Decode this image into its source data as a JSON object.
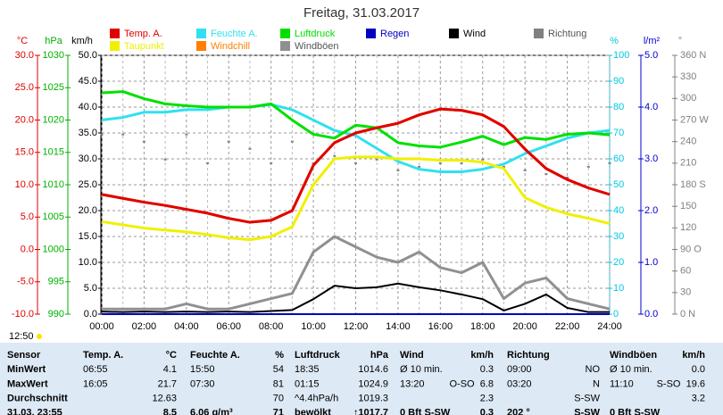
{
  "chart_data": {
    "type": "line",
    "title": "Freitag, 31.03.2017",
    "x": [
      0,
      1,
      2,
      3,
      4,
      5,
      6,
      7,
      8,
      9,
      10,
      11,
      12,
      13,
      14,
      15,
      16,
      17,
      18,
      19,
      20,
      21,
      22,
      23,
      24
    ],
    "xlim": [
      0,
      24
    ],
    "xticks": [
      {
        "value": 0,
        "label": "00:00"
      },
      {
        "value": 2,
        "label": "02:00"
      },
      {
        "value": 4,
        "label": "04:00"
      },
      {
        "value": 6,
        "label": "06:00"
      },
      {
        "value": 8,
        "label": "08:00"
      },
      {
        "value": 10,
        "label": "10:00"
      },
      {
        "value": 12,
        "label": "12:00"
      },
      {
        "value": 14,
        "label": "14:00"
      },
      {
        "value": 16,
        "label": "16:00"
      },
      {
        "value": 18,
        "label": "18:00"
      },
      {
        "value": 20,
        "label": "20:00"
      },
      {
        "value": 22,
        "label": "22:00"
      },
      {
        "value": 24,
        "label": "24:00"
      }
    ],
    "xminor": [
      1,
      3,
      5,
      7,
      9,
      11,
      13,
      15,
      17,
      19,
      21,
      23
    ],
    "grid": true,
    "y_axes": [
      {
        "label": "°C",
        "color": "#e00000",
        "lim": [
          -10,
          30
        ],
        "ticks": [
          {
            "value": 30,
            "label": "30.0"
          },
          {
            "value": 25,
            "label": "25.0"
          },
          {
            "value": 20,
            "label": "20.0"
          },
          {
            "value": 15,
            "label": "15.0"
          },
          {
            "value": 10,
            "label": "10.0"
          },
          {
            "value": 5,
            "label": "5.0"
          },
          {
            "value": 0,
            "label": "0.0"
          },
          {
            "value": -5,
            "label": "-5.0"
          },
          {
            "value": -10,
            "label": "-10.0"
          }
        ]
      },
      {
        "label": "hPa",
        "color": "#00b000",
        "lim": [
          990,
          1030
        ],
        "ticks": [
          1030,
          1025,
          1020,
          1015,
          1010,
          1005,
          1000,
          995,
          990
        ]
      },
      {
        "label": "km/h",
        "color": "#000000",
        "lim": [
          0,
          50
        ],
        "ticks": [
          {
            "value": 50,
            "label": "50.0"
          },
          {
            "value": 45,
            "label": "45.0"
          },
          {
            "value": 40,
            "label": "40.0"
          },
          {
            "value": 35,
            "label": "35.0"
          },
          {
            "value": 30,
            "label": "30.0"
          },
          {
            "value": 25,
            "label": "25.0"
          },
          {
            "value": 20,
            "label": "20.0"
          },
          {
            "value": 15,
            "label": "15.0"
          },
          {
            "value": 10,
            "label": "10.0"
          },
          {
            "value": 5,
            "label": "5.0"
          },
          {
            "value": 0,
            "label": "0.0"
          }
        ]
      },
      {
        "label": "%",
        "color": "#00c8e0",
        "lim": [
          0,
          100
        ],
        "ticks": [
          100,
          90,
          80,
          70,
          60,
          50,
          40,
          30,
          20,
          10,
          0
        ]
      },
      {
        "label": "l/m²",
        "color": "#0000d0",
        "lim": [
          0,
          5
        ],
        "ticks": [
          {
            "value": 5,
            "label": "5.0"
          },
          {
            "value": 4,
            "label": "4.0"
          },
          {
            "value": 3,
            "label": "3.0"
          },
          {
            "value": 2,
            "label": "2.0"
          },
          {
            "value": 1,
            "label": "1.0"
          },
          {
            "value": 0,
            "label": "0.0"
          }
        ]
      },
      {
        "label": "°",
        "color": "#808080",
        "lim": [
          0,
          360
        ],
        "ticks": [
          {
            "value": 360,
            "label": "360 N"
          },
          330,
          300,
          {
            "value": 270,
            "label": "270 W"
          },
          240,
          210,
          {
            "value": 180,
            "label": "180 S"
          },
          150,
          120,
          {
            "value": 90,
            "label": "90 O"
          },
          60,
          30,
          {
            "value": 0,
            "label": "0 N"
          }
        ]
      }
    ],
    "series": [
      {
        "name": "Temp. A.",
        "color": "#e00000",
        "axis": "°C",
        "values": [
          8.5,
          7.9,
          7.3,
          6.8,
          6.2,
          5.6,
          4.8,
          4.2,
          4.5,
          6.0,
          13.0,
          16.5,
          18.0,
          18.8,
          19.5,
          20.8,
          21.7,
          21.5,
          20.8,
          19.0,
          15.5,
          12.5,
          10.8,
          9.5,
          8.5
        ]
      },
      {
        "name": "Feuchte A.",
        "color": "#30e0f0",
        "axis": "%",
        "values": [
          75,
          76,
          78,
          78,
          79,
          79,
          80,
          80,
          81,
          79,
          75,
          71,
          69,
          64,
          59,
          56,
          55,
          55,
          56,
          58,
          62,
          65,
          68,
          70,
          71
        ]
      },
      {
        "name": "Luftdruck",
        "color": "#00e000",
        "axis": "hPa",
        "values": [
          1024.2,
          1024.4,
          1023.3,
          1022.5,
          1022.2,
          1022.0,
          1022.0,
          1022.0,
          1022.5,
          1020.0,
          1017.8,
          1017.2,
          1019.2,
          1018.8,
          1016.5,
          1016.0,
          1015.8,
          1016.6,
          1017.5,
          1016.2,
          1017.3,
          1017.0,
          1017.8,
          1018.0,
          1017.7
        ]
      },
      {
        "name": "Regen",
        "color": "#0000c0",
        "axis": "l/m²",
        "values": [
          0,
          0,
          0,
          0,
          0,
          0,
          0,
          0,
          0,
          0,
          0,
          0,
          0,
          0,
          0,
          0,
          0,
          0,
          0,
          0,
          0,
          0,
          0,
          0,
          0
        ]
      },
      {
        "name": "Wind",
        "color": "#000000",
        "axis": "km/h",
        "values": [
          0.5,
          0.4,
          0.5,
          0.4,
          0.5,
          0.4,
          0.5,
          0.4,
          0.6,
          0.8,
          2.9,
          5.5,
          5.0,
          5.2,
          5.9,
          5.2,
          4.6,
          3.8,
          2.9,
          0.7,
          2.0,
          3.8,
          1.2,
          0.4,
          0.4
        ]
      },
      {
        "name": "Richtung",
        "color": "#808080",
        "axis": "°",
        "type": "scatter",
        "values": [
          250,
          250,
          240,
          215,
          250,
          210,
          240,
          230,
          210,
          240,
          210,
          220,
          210,
          215,
          200,
          205,
          210,
          210,
          215,
          205,
          200,
          195,
          190,
          205,
          210
        ]
      },
      {
        "name": "Taupunkt",
        "color": "#f0f000",
        "axis": "°C",
        "values": [
          4.3,
          3.8,
          3.3,
          3.0,
          2.7,
          2.3,
          1.8,
          1.5,
          2.0,
          3.5,
          10.0,
          14.0,
          14.3,
          14.3,
          14.0,
          14.0,
          13.8,
          13.8,
          13.5,
          12.5,
          8.0,
          6.5,
          5.5,
          4.8,
          4.0
        ]
      },
      {
        "name": "Windchill",
        "color": "#ff8000",
        "axis": "°C",
        "values": [
          8.5,
          7.9,
          7.3,
          6.8,
          6.2,
          5.6,
          4.8,
          4.2,
          4.5,
          6.0,
          13.0,
          16.5,
          18.0,
          18.8,
          19.5,
          20.8,
          21.7,
          21.5,
          20.8,
          19.0,
          15.5,
          12.5,
          10.8,
          9.5,
          8.5
        ]
      },
      {
        "name": "Windböen",
        "color": "#909090",
        "axis": "km/h",
        "values": [
          1,
          1,
          1,
          1,
          2,
          1,
          1,
          2,
          3,
          4,
          12,
          15,
          13,
          11,
          10,
          12,
          9,
          8,
          10,
          3,
          6,
          7,
          3,
          2,
          1
        ]
      }
    ]
  },
  "time_label": "12:50",
  "table": {
    "rows": [
      [
        "Sensor",
        "Temp. A.",
        "°C",
        "Feuchte A.",
        "%",
        "Luftdruck",
        "hPa",
        "Wind",
        "km/h",
        "Richtung",
        null,
        "Windböen",
        "km/h"
      ],
      [
        "MinWert",
        "06:55",
        "4.1",
        "15:50",
        "54",
        "18:35",
        "1014.6",
        "Ø 10 min.",
        "0.3",
        "09:00",
        "NO",
        "Ø 10 min.",
        "0.0"
      ],
      [
        "MaxWert",
        "16:05",
        "21.7",
        "07:30",
        "81",
        "01:15",
        "1024.9",
        "13:20",
        "O-SO  6.8",
        "03:20",
        "N",
        "11:10",
        "S-SO  19.6"
      ],
      [
        "Durchschnitt",
        null,
        "12.63",
        null,
        "70",
        "^4.4hPa/h",
        "1019.3",
        null,
        "2.3",
        null,
        "S-SW",
        null,
        "3.2"
      ],
      [
        "31.03. 23:55",
        null,
        "8.5",
        "6.06 g/m³",
        "71",
        "bewölkt",
        "↑1017.7",
        "0 Bft S-SW",
        "0.3",
        "202 °",
        "S-SW",
        "0 Bft S-SW",
        null
      ]
    ]
  }
}
